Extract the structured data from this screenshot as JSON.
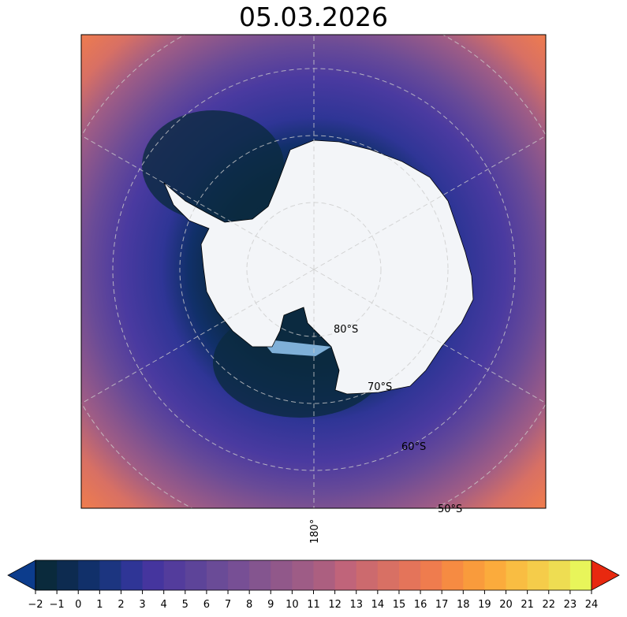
{
  "title": "05.03.2026",
  "map": {
    "projection": "south-polar-stereographic",
    "latitude_labels": [
      "80°S",
      "70°S",
      "60°S",
      "50°S"
    ],
    "longitude_label": "180°",
    "gridlines": true,
    "ocean_gradient_colors": [
      "#0b2a40",
      "#11306a",
      "#2f3596",
      "#4a3aa0",
      "#6a4b97",
      "#9e5c86",
      "#d87064",
      "#ef7c4e"
    ],
    "land_color": "#f3f5f8",
    "ice_shelf_color": "#7fb0d8"
  },
  "colorbar": {
    "ticks": [
      "−2",
      "−1",
      "0",
      "1",
      "2",
      "3",
      "4",
      "5",
      "6",
      "7",
      "8",
      "9",
      "10",
      "11",
      "12",
      "13",
      "14",
      "15",
      "16",
      "17",
      "18",
      "19",
      "20",
      "21",
      "22",
      "23",
      "24"
    ],
    "colors": [
      "#0a2a3c",
      "#0d2b50",
      "#11306a",
      "#1c3580",
      "#2f3596",
      "#45359e",
      "#533c9c",
      "#5d4499",
      "#6a4b97",
      "#774f95",
      "#84558f",
      "#91588a",
      "#9e5c86",
      "#ac5f80",
      "#c0647a",
      "#cc6a6e",
      "#d87064",
      "#e4745a",
      "#ef7c4e",
      "#f68b42",
      "#f99b3c",
      "#fbab3c",
      "#f9bd42",
      "#f5cc4a",
      "#eedd52",
      "#e8f55a"
    ],
    "extend_low_color": "#0c3c8c",
    "extend_high_color": "#e8290f"
  }
}
